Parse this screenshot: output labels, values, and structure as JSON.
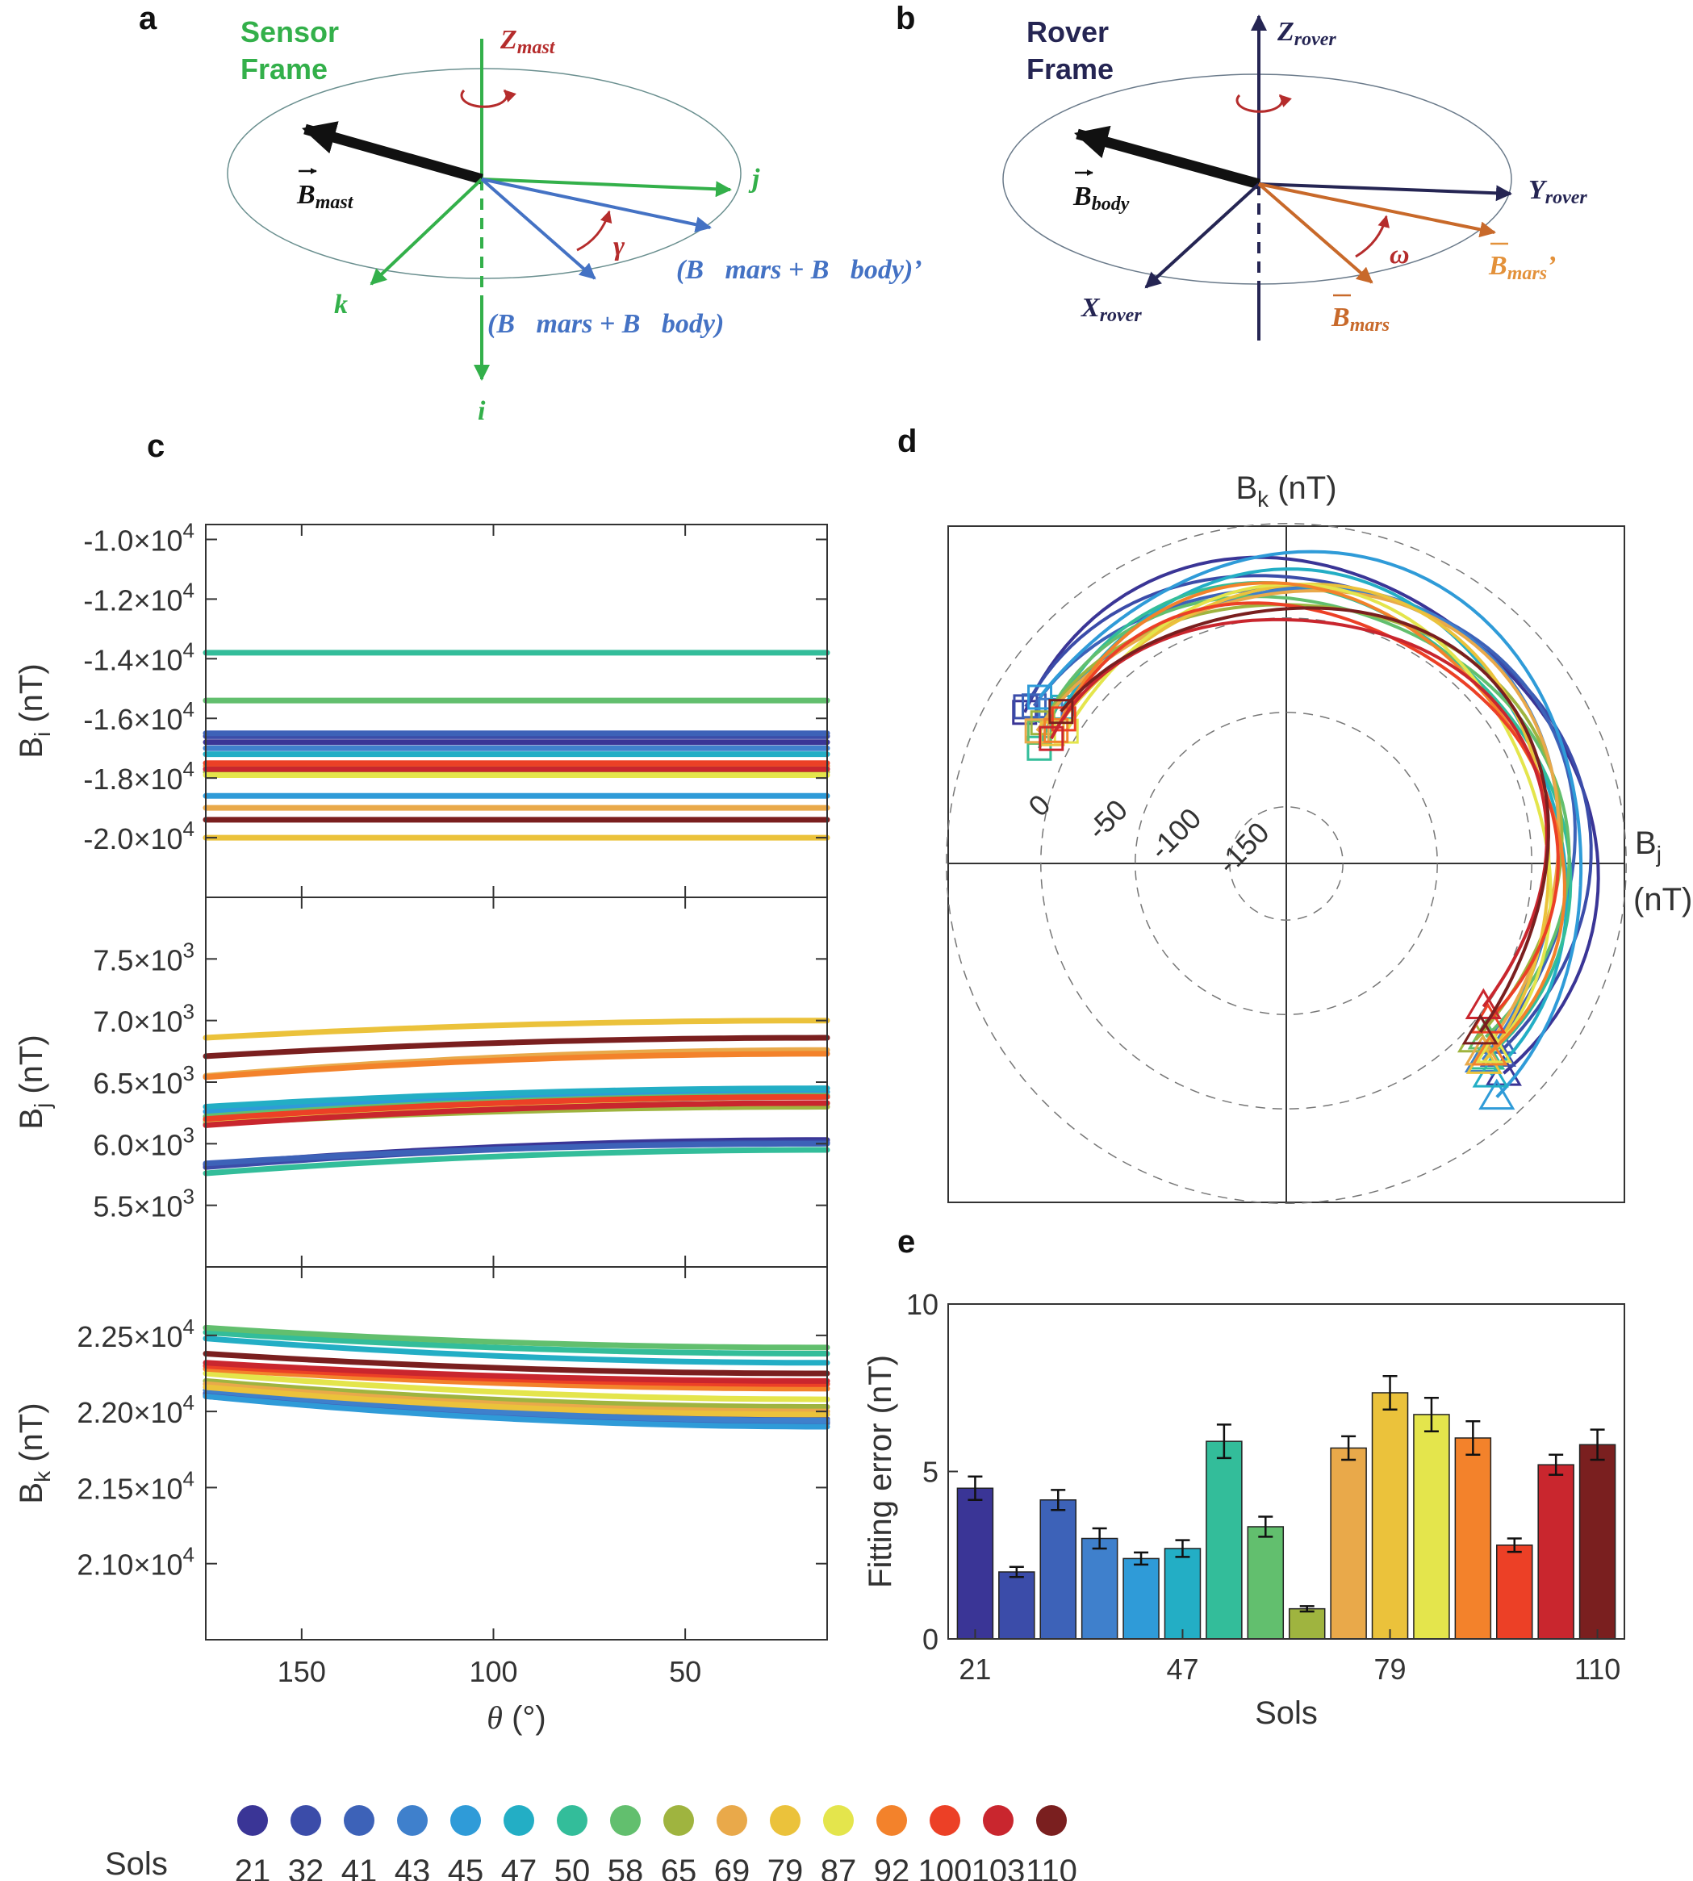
{
  "colors": {
    "sensor": "#33b04a",
    "mast": "#b52c2c",
    "bvec": "#4472c4",
    "rover": "#252553",
    "mars": "#c8692a",
    "marsPrime": "#e3913a",
    "black": "#111111"
  },
  "panel_a": {
    "label": "a",
    "title_line1": "Sensor",
    "title_line2": "Frame",
    "z_main": "Z",
    "z_sub": "mast",
    "b_mast_main": "B",
    "b_mast_sub": "mast",
    "j_label": "j",
    "k_label": "k",
    "i_label": "i",
    "gamma": "γ",
    "b_sum_prime": "(B⃗mars + B⃗body)’",
    "b_sum": "(B⃗mars + B⃗body)"
  },
  "panel_b": {
    "label": "b",
    "title_line1": "Rover",
    "title_line2": "Frame",
    "z_main": "Z",
    "z_sub": "rover",
    "y_main": "Y",
    "y_sub": "rover",
    "x_main": "X",
    "x_sub": "rover",
    "b_body_main": "B",
    "b_body_sub": "body",
    "b_mars_main": "B",
    "b_mars_sub": "mars",
    "b_mars_prime_main": "B",
    "b_mars_prime_sub": "mars",
    "b_mars_prime_suffix": "’",
    "omega": "ω"
  },
  "panel_c": {
    "label": "c"
  },
  "panel_d": {
    "label": "d"
  },
  "panel_e": {
    "label": "e"
  },
  "legend": {
    "title": "Sols",
    "sols": [
      "21",
      "32",
      "41",
      "43",
      "45",
      "47",
      "50",
      "58",
      "65",
      "69",
      "79",
      "87",
      "92",
      "100",
      "103",
      "110"
    ],
    "colors": [
      "#3a3596",
      "#3b4ca9",
      "#3d62b8",
      "#3f80cc",
      "#2f9bd8",
      "#23aec5",
      "#33bd9a",
      "#62bf6e",
      "#9fb43f",
      "#e9a94a",
      "#ebc23b",
      "#e4e54c",
      "#f3822b",
      "#ec4026",
      "#c9262e",
      "#7a1f1f"
    ]
  },
  "chart_data": [
    {
      "id": "c1",
      "type": "line",
      "ylabel_main": "B",
      "ylabel_sub": "i",
      "ylabel_unit": "(nT)",
      "xlim": [
        175,
        13
      ],
      "ylim": [
        -22000,
        -9500
      ],
      "xticks": [
        150,
        100,
        50
      ],
      "yticks": [
        {
          "value": -10000,
          "mant": "-1.0",
          "exp": "4"
        },
        {
          "value": -12000,
          "mant": "-1.2",
          "exp": "4"
        },
        {
          "value": -14000,
          "mant": "-1.4",
          "exp": "4"
        },
        {
          "value": -16000,
          "mant": "-1.6",
          "exp": "4"
        },
        {
          "value": -18000,
          "mant": "-1.8",
          "exp": "4"
        },
        {
          "value": -20000,
          "mant": "-2.0",
          "exp": "4"
        }
      ],
      "series": [
        {
          "sol": "21",
          "y0": -16800,
          "y1": -16800
        },
        {
          "sol": "32",
          "y0": -16600,
          "y1": -16600
        },
        {
          "sol": "41",
          "y0": -16500,
          "y1": -16500
        },
        {
          "sol": "43",
          "y0": -17000,
          "y1": -17000
        },
        {
          "sol": "45",
          "y0": -18600,
          "y1": -18600
        },
        {
          "sol": "47",
          "y0": -17200,
          "y1": -17200
        },
        {
          "sol": "50",
          "y0": -13800,
          "y1": -13800
        },
        {
          "sol": "58",
          "y0": -15400,
          "y1": -15400
        },
        {
          "sol": "65",
          "y0": -17800,
          "y1": -17800
        },
        {
          "sol": "69",
          "y0": -19000,
          "y1": -19000
        },
        {
          "sol": "79",
          "y0": -20000,
          "y1": -20000
        },
        {
          "sol": "87",
          "y0": -17900,
          "y1": -17900
        },
        {
          "sol": "92",
          "y0": -17600,
          "y1": -17600
        },
        {
          "sol": "100",
          "y0": -17500,
          "y1": -17500
        },
        {
          "sol": "103",
          "y0": -17700,
          "y1": -17700
        },
        {
          "sol": "110",
          "y0": -19400,
          "y1": -19400
        }
      ]
    },
    {
      "id": "c2",
      "type": "line",
      "ylabel_main": "B",
      "ylabel_sub": "j",
      "ylabel_unit": "(nT)",
      "xlim": [
        175,
        13
      ],
      "ylim": [
        5000,
        8000
      ],
      "xticks": [
        150,
        100,
        50
      ],
      "yticks": [
        {
          "value": 5500,
          "mant": "5.5",
          "exp": "3"
        },
        {
          "value": 6000,
          "mant": "6.0",
          "exp": "3"
        },
        {
          "value": 6500,
          "mant": "6.5",
          "exp": "3"
        },
        {
          "value": 7000,
          "mant": "7.0",
          "exp": "3"
        },
        {
          "value": 7500,
          "mant": "7.5",
          "exp": "3"
        }
      ],
      "series": [
        {
          "sol": "21",
          "y0": 5830,
          "y1": 6030
        },
        {
          "sol": "32",
          "y0": 5810,
          "y1": 6010
        },
        {
          "sol": "41",
          "y0": 5840,
          "y1": 6000
        },
        {
          "sol": "43",
          "y0": 6180,
          "y1": 6380
        },
        {
          "sol": "45",
          "y0": 6260,
          "y1": 6420
        },
        {
          "sol": "47",
          "y0": 6300,
          "y1": 6450
        },
        {
          "sol": "50",
          "y0": 5760,
          "y1": 5950
        },
        {
          "sol": "58",
          "y0": 6220,
          "y1": 6390
        },
        {
          "sol": "65",
          "y0": 6160,
          "y1": 6300
        },
        {
          "sol": "69",
          "y0": 6550,
          "y1": 6760
        },
        {
          "sol": "79",
          "y0": 6860,
          "y1": 7000
        },
        {
          "sol": "87",
          "y0": 6190,
          "y1": 6330
        },
        {
          "sol": "92",
          "y0": 6540,
          "y1": 6730
        },
        {
          "sol": "100",
          "y0": 6200,
          "y1": 6380
        },
        {
          "sol": "103",
          "y0": 6150,
          "y1": 6330
        },
        {
          "sol": "110",
          "y0": 6710,
          "y1": 6860
        }
      ]
    },
    {
      "id": "c3",
      "type": "line",
      "ylabel_main": "B",
      "ylabel_sub": "k",
      "ylabel_unit": "(nT)",
      "xlabel_var": "θ",
      "xlabel_unit": " (°)",
      "xlim": [
        175,
        13
      ],
      "ylim": [
        20500,
        22950
      ],
      "xticks": [
        150,
        100,
        50
      ],
      "yticks": [
        {
          "value": 21000,
          "mant": "2.10",
          "exp": "4"
        },
        {
          "value": 21500,
          "mant": "2.15",
          "exp": "4"
        },
        {
          "value": 22000,
          "mant": "2.20",
          "exp": "4"
        },
        {
          "value": 22500,
          "mant": "2.25",
          "exp": "4"
        }
      ],
      "series": [
        {
          "sol": "21",
          "y0": 22100,
          "y1": 21930
        },
        {
          "sol": "32",
          "y0": 22120,
          "y1": 21950
        },
        {
          "sol": "41",
          "y0": 22110,
          "y1": 21920
        },
        {
          "sol": "43",
          "y0": 22140,
          "y1": 21940
        },
        {
          "sol": "45",
          "y0": 22100,
          "y1": 21900
        },
        {
          "sol": "47",
          "y0": 22480,
          "y1": 22320
        },
        {
          "sol": "50",
          "y0": 22520,
          "y1": 22380
        },
        {
          "sol": "58",
          "y0": 22550,
          "y1": 22420
        },
        {
          "sol": "65",
          "y0": 22200,
          "y1": 22030
        },
        {
          "sol": "69",
          "y0": 22180,
          "y1": 22000
        },
        {
          "sol": "79",
          "y0": 22160,
          "y1": 21980
        },
        {
          "sol": "87",
          "y0": 22250,
          "y1": 22080
        },
        {
          "sol": "92",
          "y0": 22280,
          "y1": 22150
        },
        {
          "sol": "100",
          "y0": 22300,
          "y1": 22180
        },
        {
          "sol": "103",
          "y0": 22320,
          "y1": 22200
        },
        {
          "sol": "110",
          "y0": 22380,
          "y1": 22250
        }
      ]
    },
    {
      "id": "d",
      "type": "polar",
      "top_label_main": "B",
      "top_label_sub": "k",
      "top_label_unit": "(nT)",
      "right_label_main": "B",
      "right_label_sub": "j",
      "right_label_unit": "(nT)",
      "rlim": [
        -180,
        0
      ],
      "rings": [
        0,
        -50,
        -100,
        -150
      ],
      "ring_labels": [
        "0",
        "-50",
        "-100",
        "-150"
      ],
      "series": [
        {
          "sol": "21",
          "start_deg": 150,
          "end_deg": -44,
          "r_mid": -20
        },
        {
          "sol": "32",
          "start_deg": 149,
          "end_deg": -42,
          "r_mid": -24
        },
        {
          "sol": "41",
          "start_deg": 148,
          "end_deg": -40,
          "r_mid": -28
        },
        {
          "sol": "43",
          "start_deg": 147,
          "end_deg": -45,
          "r_mid": -32
        },
        {
          "sol": "45",
          "start_deg": 146,
          "end_deg": -48,
          "r_mid": -18
        },
        {
          "sol": "47",
          "start_deg": 145,
          "end_deg": -46,
          "r_mid": -30
        },
        {
          "sol": "50",
          "start_deg": 155,
          "end_deg": -44,
          "r_mid": -34
        },
        {
          "sol": "58",
          "start_deg": 152,
          "end_deg": -41,
          "r_mid": -36
        },
        {
          "sol": "65",
          "start_deg": 150,
          "end_deg": -43,
          "r_mid": -37
        },
        {
          "sol": "69",
          "start_deg": 152,
          "end_deg": -44,
          "r_mid": -33
        },
        {
          "sol": "79",
          "start_deg": 151,
          "end_deg": -45,
          "r_mid": -35
        },
        {
          "sol": "87",
          "start_deg": 149,
          "end_deg": -42,
          "r_mid": -38
        },
        {
          "sol": "92",
          "start_deg": 150,
          "end_deg": -43,
          "r_mid": -36
        },
        {
          "sol": "100",
          "start_deg": 147,
          "end_deg": -38,
          "r_mid": -42
        },
        {
          "sol": "103",
          "start_deg": 152,
          "end_deg": -36,
          "r_mid": -45
        },
        {
          "sol": "110",
          "start_deg": 146,
          "end_deg": -41,
          "r_mid": -40
        }
      ]
    },
    {
      "id": "e",
      "type": "bar",
      "ylabel": "Fitting error (nT)",
      "xlabel": "Sols",
      "ylim": [
        0,
        10
      ],
      "yticks": [
        0,
        5,
        10
      ],
      "xtick_labels": [
        "21",
        "47",
        "79",
        "110"
      ],
      "categories": [
        "21",
        "32",
        "41",
        "43",
        "45",
        "47",
        "50",
        "58",
        "65",
        "69",
        "79",
        "87",
        "92",
        "100",
        "103",
        "110"
      ],
      "values": [
        4.5,
        2.0,
        4.15,
        3.0,
        2.4,
        2.7,
        5.9,
        3.35,
        0.9,
        5.7,
        7.35,
        6.7,
        6.0,
        2.8,
        5.2,
        5.8
      ],
      "errors": [
        0.35,
        0.15,
        0.3,
        0.3,
        0.18,
        0.25,
        0.5,
        0.3,
        0.08,
        0.35,
        0.5,
        0.5,
        0.5,
        0.2,
        0.3,
        0.45
      ]
    }
  ]
}
